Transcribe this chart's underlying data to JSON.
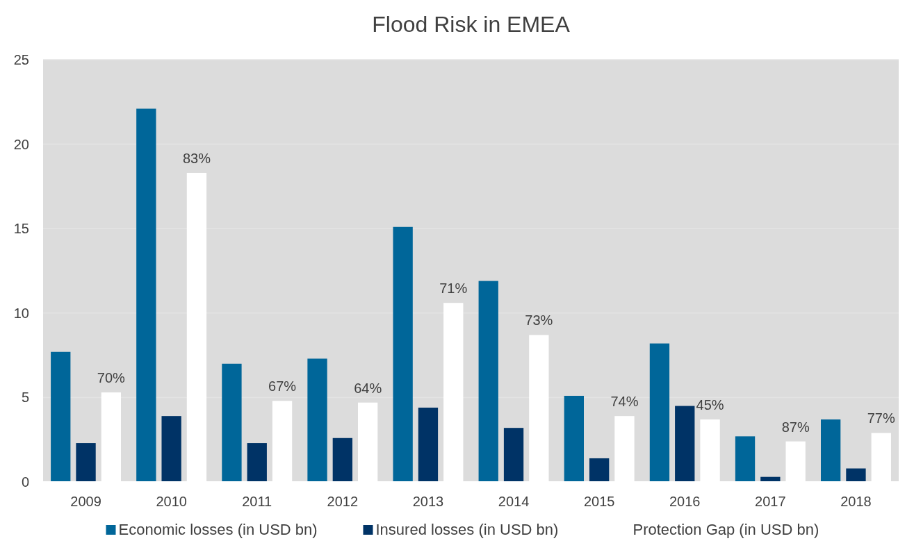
{
  "chart_data": {
    "type": "bar",
    "title": "Flood Risk in EMEA",
    "categories": [
      "2009",
      "2010",
      "2011",
      "2012",
      "2013",
      "2014",
      "2015",
      "2016",
      "2017",
      "2018"
    ],
    "series": [
      {
        "name": "Economic losses (in USD bn)",
        "color": "#006699",
        "values": [
          7.7,
          22.1,
          7.0,
          7.3,
          15.1,
          11.9,
          5.1,
          8.2,
          2.7,
          3.7
        ]
      },
      {
        "name": "Insured losses (in USD bn)",
        "color": "#003366",
        "values": [
          2.3,
          3.9,
          2.3,
          2.6,
          4.4,
          3.2,
          1.4,
          4.5,
          0.3,
          0.8
        ]
      },
      {
        "name": "Protection Gap (in USD bn)",
        "color": "#ffffff",
        "values": [
          5.3,
          18.3,
          4.8,
          4.7,
          10.6,
          8.7,
          3.9,
          3.7,
          2.4,
          2.9
        ]
      }
    ],
    "annotations": [
      "70%",
      "83%",
      "67%",
      "64%",
      "71%",
      "73%",
      "74%",
      "45%",
      "87%",
      "77%"
    ],
    "ylim": [
      0,
      25
    ],
    "yticks": [
      0,
      5,
      10,
      15,
      20,
      25
    ],
    "grid": "y",
    "legend": "bottom"
  }
}
